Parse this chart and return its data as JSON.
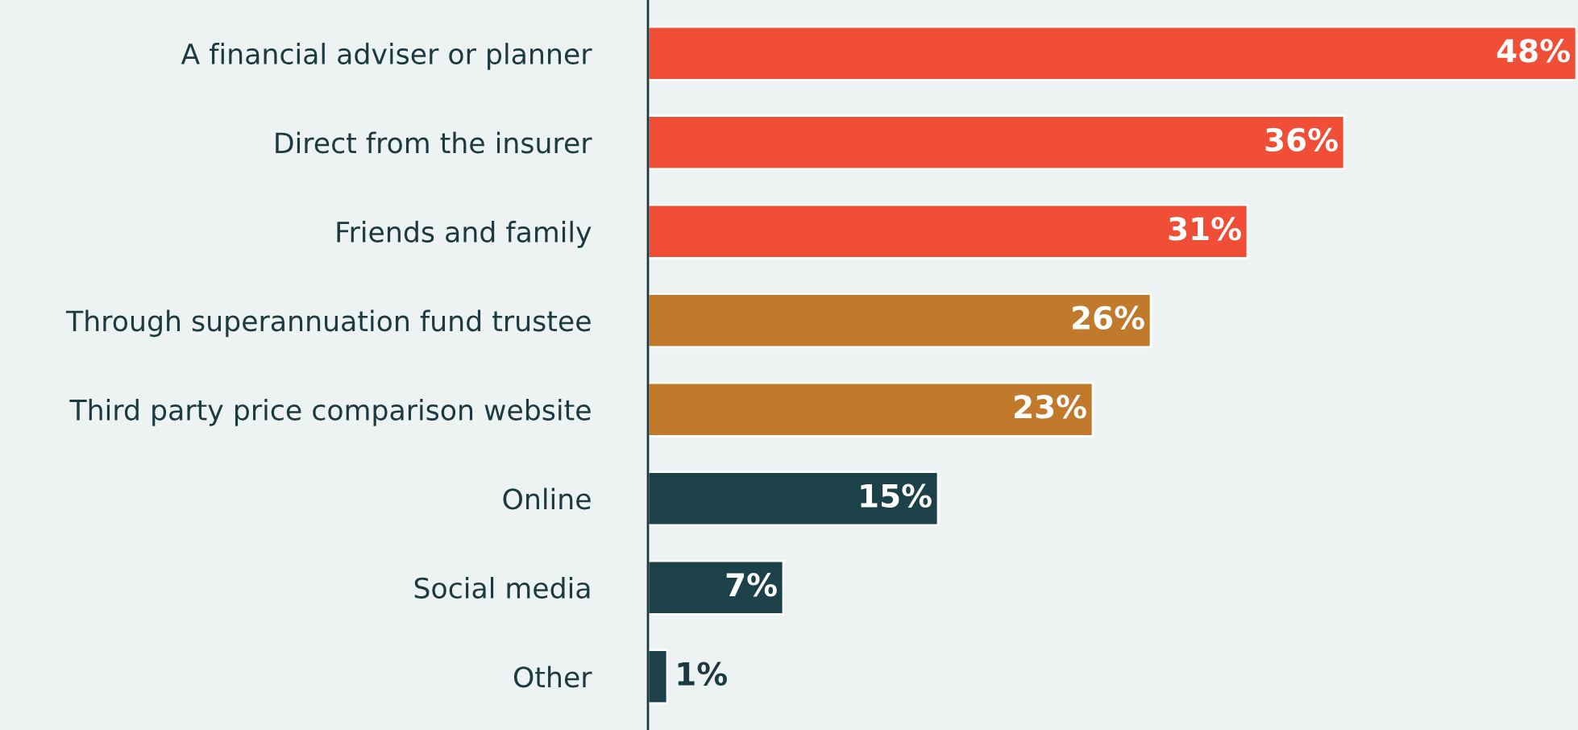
{
  "chart_data": {
    "type": "bar",
    "orientation": "horizontal",
    "categories": [
      "A financial adviser or planner",
      "Direct from the insurer",
      "Friends and family",
      "Through superannuation fund trustee",
      "Third party price comparison website",
      "Online",
      "Social media",
      "Other"
    ],
    "values": [
      48,
      36,
      31,
      26,
      23,
      15,
      7,
      1
    ],
    "value_labels": [
      "48%",
      "36%",
      "31%",
      "26%",
      "23%",
      "15%",
      "7%",
      "1%"
    ],
    "colors": [
      "#f04e37",
      "#f04e37",
      "#f04e37",
      "#c17a2c",
      "#c17a2c",
      "#1d4149",
      "#1d4149",
      "#1d4149"
    ],
    "xlim": [
      0,
      48
    ],
    "tick_labels": "y",
    "grid": false,
    "legend": false
  }
}
